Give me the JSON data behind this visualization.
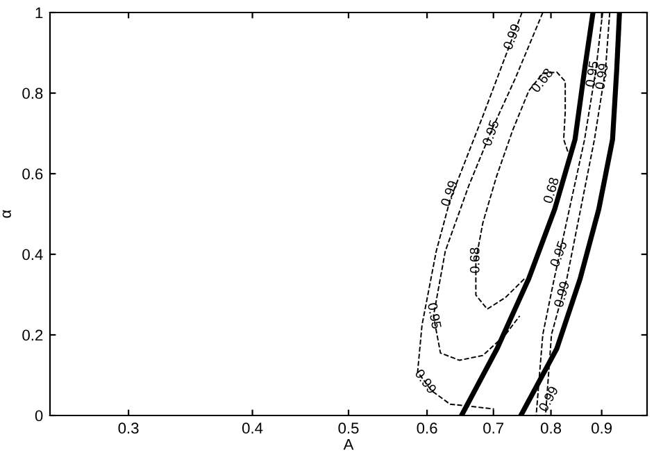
{
  "chart_data": {
    "type": "line",
    "xlabel": "A",
    "ylabel": "α",
    "log": "x",
    "xlim": [
      0.25,
      1
    ],
    "ylim": [
      0,
      1
    ],
    "xticks": [
      0.3,
      0.4,
      0.5,
      0.6,
      0.7,
      0.8,
      0.9
    ],
    "yticks": [
      0,
      0.2,
      0.4,
      0.6,
      0.8,
      1
    ],
    "grid": false,
    "series": [
      {
        "color": "#000000",
        "line_style": "solid",
        "x": [
          0.65,
          0.706,
          0.76,
          0.807,
          0.846,
          0.865,
          0.882
        ],
        "values": [
          0,
          0.166,
          0.34,
          0.512,
          0.685,
          0.858,
          1.0
        ]
      },
      {
        "color": "#000000",
        "line_style": "solid",
        "x": [
          0.746,
          0.811,
          0.856,
          0.894,
          0.923,
          0.932,
          0.938
        ],
        "values": [
          0,
          0.166,
          0.339,
          0.512,
          0.685,
          0.858,
          1.0
        ]
      },
      {
        "color": "#000000",
        "line_style": "dashed",
        "x": [
          0.752,
          0.72,
          0.69,
          0.672,
          0.672,
          0.683,
          0.705,
          0.732,
          0.76,
          0.785,
          0.811,
          0.827,
          0.827,
          0.824,
          0.833
        ],
        "values": [
          0.339,
          0.293,
          0.264,
          0.299,
          0.385,
          0.478,
          0.593,
          0.708,
          0.806,
          0.849,
          0.852,
          0.829,
          0.754,
          0.685,
          0.651
        ]
      },
      {
        "color": "#000000",
        "line_style": "dashed",
        "x": [
          0.785,
          0.736,
          0.697,
          0.661,
          0.626,
          0.609,
          0.619,
          0.647,
          0.683,
          0.72,
          0.744
        ],
        "values": [
          1.0,
          0.835,
          0.708,
          0.57,
          0.408,
          0.247,
          0.155,
          0.137,
          0.149,
          0.201,
          0.247
        ]
      },
      {
        "color": "#000000",
        "line_style": "dashed",
        "x": [
          0.748,
          0.732,
          0.683,
          0.633,
          0.613,
          0.593,
          0.587,
          0.606,
          0.633,
          0.668,
          0.701
        ],
        "values": [
          1.0,
          0.939,
          0.743,
          0.535,
          0.408,
          0.224,
          0.108,
          0.062,
          0.028,
          0.022,
          0.016
        ]
      },
      {
        "color": "#000000",
        "line_style": "dashed",
        "x": [
          0.902,
          0.888,
          0.865,
          0.806,
          0.785,
          0.773
        ],
        "values": [
          1.0,
          0.858,
          0.685,
          0.339,
          0.201,
          0.0
        ]
      },
      {
        "color": "#000000",
        "line_style": "dashed",
        "x": [
          0.917,
          0.908,
          0.885,
          0.83,
          0.801,
          0.79
        ],
        "values": [
          1.0,
          0.858,
          0.685,
          0.339,
          0.201,
          0.0
        ]
      }
    ],
    "annotations": [
      {
        "text": "0.99",
        "x": 0.732,
        "y": 0.939
      },
      {
        "text": "0.68",
        "x": 0.785,
        "y": 0.83
      },
      {
        "text": "0.95",
        "x": 0.697,
        "y": 0.7
      },
      {
        "text": "0.99",
        "x": 0.633,
        "y": 0.55
      },
      {
        "text": "0.68",
        "x": 0.672,
        "y": 0.385
      },
      {
        "text": "0.95",
        "x": 0.609,
        "y": 0.247
      },
      {
        "text": "0.99",
        "x": 0.597,
        "y": 0.083
      },
      {
        "text": "0.68",
        "x": 0.802,
        "y": 0.558
      },
      {
        "text": "0.95",
        "x": 0.816,
        "y": 0.4
      },
      {
        "text": "0.99",
        "x": 0.822,
        "y": 0.3
      },
      {
        "text": "0.95",
        "x": 0.882,
        "y": 0.847
      },
      {
        "text": "0.99",
        "x": 0.902,
        "y": 0.841
      },
      {
        "text": "0.99",
        "x": 0.797,
        "y": 0.04
      }
    ]
  }
}
